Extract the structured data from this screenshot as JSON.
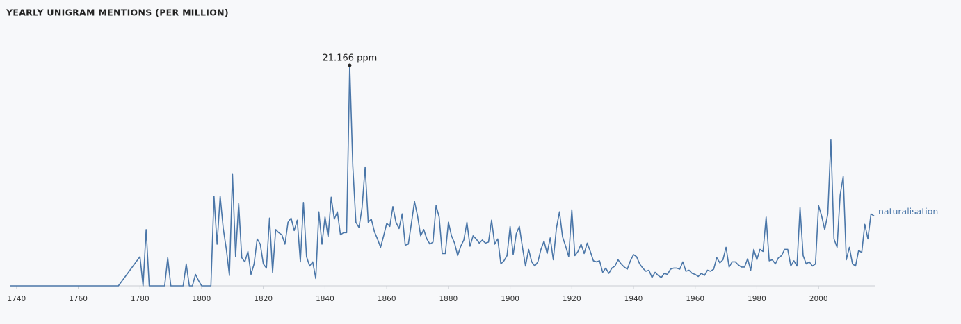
{
  "chart_data": {
    "type": "line",
    "title": "YEARLY UNIGRAM MENTIONS (PER MILLION)",
    "x": [
      1738,
      1773,
      1780,
      1781,
      1782,
      1783,
      1784,
      1785,
      1786,
      1787,
      1788,
      1789,
      1790,
      1791,
      1792,
      1793,
      1794,
      1795,
      1796,
      1797,
      1798,
      1799,
      1800,
      1801,
      1802,
      1803,
      1804,
      1805,
      1806,
      1807,
      1808,
      1809,
      1810,
      1811,
      1812,
      1813,
      1814,
      1815,
      1816,
      1817,
      1818,
      1819,
      1820,
      1821,
      1822,
      1823,
      1824,
      1825,
      1826,
      1827,
      1828,
      1829,
      1830,
      1831,
      1832,
      1833,
      1834,
      1835,
      1836,
      1837,
      1838,
      1839,
      1840,
      1841,
      1842,
      1843,
      1844,
      1845,
      1846,
      1847,
      1848,
      1849,
      1850,
      1851,
      1852,
      1853,
      1854,
      1855,
      1856,
      1857,
      1858,
      1859,
      1860,
      1861,
      1862,
      1863,
      1864,
      1865,
      1866,
      1867,
      1868,
      1869,
      1870,
      1871,
      1872,
      1873,
      1874,
      1875,
      1876,
      1877,
      1878,
      1879,
      1880,
      1881,
      1882,
      1883,
      1884,
      1885,
      1886,
      1887,
      1888,
      1889,
      1890,
      1891,
      1892,
      1893,
      1894,
      1895,
      1896,
      1897,
      1898,
      1899,
      1900,
      1901,
      1902,
      1903,
      1904,
      1905,
      1906,
      1907,
      1908,
      1909,
      1910,
      1911,
      1912,
      1913,
      1914,
      1915,
      1916,
      1917,
      1918,
      1919,
      1920,
      1921,
      1922,
      1923,
      1924,
      1925,
      1926,
      1927,
      1928,
      1929,
      1930,
      1931,
      1932,
      1933,
      1934,
      1935,
      1936,
      1937,
      1938,
      1939,
      1940,
      1941,
      1942,
      1943,
      1944,
      1945,
      1946,
      1947,
      1948,
      1949,
      1950,
      1951,
      1952,
      1953,
      1954,
      1955,
      1956,
      1957,
      1958,
      1959,
      1960,
      1961,
      1962,
      1963,
      1964,
      1965,
      1966,
      1967,
      1968,
      1969,
      1970,
      1971,
      1972,
      1973,
      1974,
      1975,
      1976,
      1977,
      1978,
      1979,
      1980,
      1981,
      1982,
      1983,
      1984,
      1985,
      1986,
      1987,
      1988,
      1989,
      1990,
      1991,
      1992,
      1993,
      1994,
      1995,
      1996,
      1997,
      1998,
      1999,
      2000,
      2001,
      2002,
      2003,
      2004,
      2005,
      2006,
      2007,
      2008,
      2009,
      2010,
      2011,
      2012,
      2013,
      2014,
      2015,
      2016,
      2017,
      2018
    ],
    "series": [
      {
        "name": "naturalisation",
        "color": "#4a76a8",
        "values": [
          0,
          0,
          2.8,
          0,
          5.4,
          0,
          0,
          0,
          0,
          0,
          0,
          2.7,
          0,
          0,
          0,
          0,
          0,
          2.1,
          0,
          0,
          1.1,
          0.5,
          0,
          0,
          0,
          0,
          8.6,
          4.0,
          8.6,
          5.5,
          3.5,
          1.0,
          10.7,
          2.8,
          7.9,
          2.7,
          2.3,
          3.3,
          1.1,
          2.1,
          4.5,
          4.0,
          2.1,
          1.7,
          6.5,
          1.3,
          5.4,
          5.1,
          4.9,
          4.0,
          6.1,
          6.5,
          5.3,
          6.3,
          2.3,
          8.0,
          2.8,
          1.9,
          2.3,
          0.7,
          7.1,
          4.0,
          6.6,
          4.7,
          8.5,
          6.4,
          7.1,
          4.9,
          5.1,
          5.1,
          21.166,
          11.5,
          6.1,
          5.6,
          7.5,
          11.4,
          6.1,
          6.4,
          5.2,
          4.5,
          3.7,
          4.8,
          6.0,
          5.7,
          7.6,
          6.1,
          5.5,
          6.9,
          3.9,
          4.0,
          6.0,
          8.1,
          6.7,
          4.8,
          5.4,
          4.5,
          4.0,
          4.2,
          7.7,
          6.6,
          3.1,
          3.1,
          6.1,
          4.8,
          4.1,
          2.9,
          3.8,
          4.4,
          6.1,
          3.8,
          4.8,
          4.5,
          4.1,
          4.4,
          4.1,
          4.2,
          6.3,
          4.0,
          4.5,
          2.1,
          2.4,
          2.9,
          5.7,
          3.0,
          5.0,
          5.7,
          3.7,
          1.9,
          3.5,
          2.3,
          1.9,
          2.3,
          3.5,
          4.3,
          3.1,
          4.6,
          2.5,
          5.5,
          7.1,
          4.7,
          3.8,
          2.8,
          7.3,
          2.9,
          3.3,
          4.0,
          3.1,
          4.1,
          3.3,
          2.4,
          2.3,
          2.4,
          1.3,
          1.7,
          1.2,
          1.7,
          1.9,
          2.5,
          2.1,
          1.8,
          1.6,
          2.4,
          3.0,
          2.8,
          2.1,
          1.7,
          1.4,
          1.5,
          0.8,
          1.3,
          1.0,
          0.8,
          1.2,
          1.1,
          1.6,
          1.7,
          1.7,
          1.6,
          2.3,
          1.4,
          1.5,
          1.2,
          1.1,
          0.9,
          1.2,
          1.0,
          1.5,
          1.4,
          1.6,
          2.7,
          2.2,
          2.5,
          3.7,
          1.8,
          2.3,
          2.3,
          2.0,
          1.8,
          1.8,
          2.6,
          1.5,
          3.5,
          2.5,
          3.5,
          3.3,
          6.6,
          2.4,
          2.5,
          2.1,
          2.7,
          2.9,
          3.5,
          3.5,
          1.9,
          2.4,
          1.9,
          7.5,
          2.9,
          2.1,
          2.3,
          1.9,
          2.1,
          7.7,
          6.7,
          5.4,
          6.9,
          14.0,
          4.5,
          3.7,
          8.7,
          10.5,
          2.5,
          3.7,
          2.1,
          1.9,
          3.4,
          3.2,
          5.9,
          4.5,
          6.9,
          6.7
        ]
      }
    ],
    "annotations": [
      {
        "x": 1848,
        "value": 21.166,
        "label": "21.166 ppm"
      }
    ],
    "xlim": [
      1738,
      2018
    ],
    "xticks": [
      1740,
      1760,
      1780,
      1800,
      1820,
      1840,
      1860,
      1880,
      1900,
      1920,
      1940,
      1960,
      1980,
      2000
    ],
    "ylim": [
      0,
      21.166
    ]
  }
}
